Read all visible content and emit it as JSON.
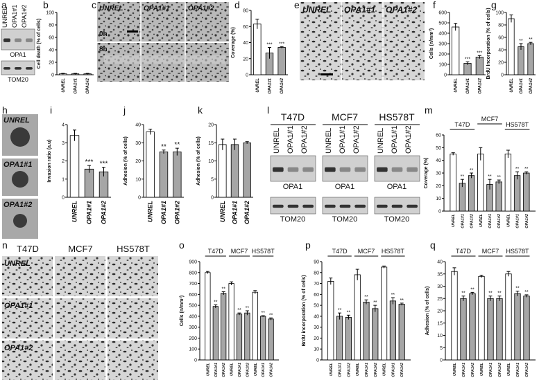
{
  "panel_labels": [
    "a",
    "b",
    "c",
    "d",
    "e",
    "f",
    "g",
    "h",
    "i",
    "j",
    "k",
    "l",
    "m",
    "n",
    "o",
    "p",
    "q"
  ],
  "images": {
    "a": {
      "lanes": [
        "UNREL",
        "OPA1#1",
        "OPA1#2"
      ],
      "bands": [
        "OPA1",
        "TOM20"
      ]
    },
    "c": {
      "columns": [
        "UNREL",
        "OPA1#1",
        "OPA1#2"
      ],
      "rows": [
        "0h",
        "8h"
      ]
    },
    "e": {
      "columns": [
        "UNREL",
        "OPA1#1",
        "OPA1#2"
      ]
    },
    "h": {
      "rows": [
        "UNREL",
        "OPA1#1",
        "OPA1#2"
      ]
    },
    "l": {
      "lines": [
        "T47D",
        "MCF7",
        "HS578T"
      ],
      "lanes": [
        "UNREL",
        "OPA1#1",
        "OPA1#2"
      ],
      "bands": [
        "OPA1",
        "TOM20"
      ]
    },
    "n": {
      "columns": [
        "T47D",
        "MCF7",
        "HS578T"
      ],
      "rows": [
        "UNREL",
        "OPA1#1",
        "OPA1#2"
      ]
    }
  },
  "chart_data": [
    {
      "type": "bar",
      "ylabel": "Cell death (% of cells)",
      "categories": [
        "UNREL",
        "OPA1#1",
        "OPA1#2"
      ],
      "values": [
        1.5,
        1.5,
        1.5
      ],
      "errors": [
        0.8,
        0.8,
        0.8
      ],
      "annotations": [
        null,
        null,
        null
      ],
      "colors": [
        "#ffffff",
        "#a6a6a6",
        "#a6a6a6"
      ],
      "ylim": [
        0,
        100
      ],
      "yticks": [
        0,
        20,
        40,
        60,
        80,
        100
      ]
    },
    {
      "type": "bar",
      "ylabel": "Coverage (%)",
      "categories": [
        "UNREL",
        "OPA1#1",
        "OPA1#2"
      ],
      "values": [
        63,
        27,
        34
      ],
      "errors": [
        6,
        7,
        1
      ],
      "annotations": [
        null,
        "***",
        "***"
      ],
      "colors": [
        "#ffffff",
        "#a6a6a6",
        "#a6a6a6"
      ],
      "ylim": [
        0,
        80
      ],
      "yticks": [
        0,
        20,
        40,
        60,
        80
      ]
    },
    {
      "type": "bar",
      "ylabel": "Cells (n/mm²)",
      "categories": [
        "UNREL",
        "OPA1#1",
        "OPA1#2"
      ],
      "values": [
        460,
        110,
        170
      ],
      "errors": [
        35,
        15,
        15
      ],
      "annotations": [
        null,
        "***",
        "***"
      ],
      "colors": [
        "#ffffff",
        "#a6a6a6",
        "#a6a6a6"
      ],
      "ylim": [
        0,
        600
      ],
      "yticks": [
        0,
        100,
        200,
        300,
        400,
        500,
        600
      ]
    },
    {
      "type": "bar",
      "ylabel": "BrdU Incorporation (% of cells)",
      "categories": [
        "UNREL",
        "OPA1#1",
        "OPA1#2"
      ],
      "values": [
        90,
        45,
        50
      ],
      "errors": [
        6,
        5,
        2
      ],
      "annotations": [
        null,
        "**",
        "**"
      ],
      "colors": [
        "#ffffff",
        "#a6a6a6",
        "#a6a6a6"
      ],
      "ylim": [
        0,
        100
      ],
      "yticks": [
        0,
        20,
        40,
        60,
        80,
        100
      ]
    },
    {
      "type": "bar",
      "ylabel": "Invasion ratio (a.u)",
      "categories": [
        "UNREL",
        "OPA1#1",
        "OPA1#2"
      ],
      "values": [
        3.4,
        1.55,
        1.4
      ],
      "errors": [
        0.3,
        0.2,
        0.25
      ],
      "annotations": [
        null,
        "***",
        "***"
      ],
      "colors": [
        "#ffffff",
        "#a6a6a6",
        "#a6a6a6"
      ],
      "ylim": [
        0,
        4
      ],
      "yticks": [
        0,
        1,
        2,
        3,
        4
      ]
    },
    {
      "type": "bar",
      "ylabel": "Adhesion (% of cells)",
      "categories": [
        "UNREL",
        "OPA1#1",
        "OPA1#2"
      ],
      "values": [
        36,
        25,
        25
      ],
      "errors": [
        1.5,
        1,
        2
      ],
      "annotations": [
        null,
        "**",
        "**"
      ],
      "colors": [
        "#ffffff",
        "#a6a6a6",
        "#a6a6a6"
      ],
      "ylim": [
        0,
        40
      ],
      "yticks": [
        0,
        10,
        20,
        30,
        40
      ]
    },
    {
      "type": "bar",
      "ylabel": "Adhesion (% of cells)",
      "categories": [
        "UNREL",
        "OPA1#1",
        "OPA1#2"
      ],
      "values": [
        14.5,
        14.5,
        15
      ],
      "errors": [
        1.5,
        1.5,
        0.3
      ],
      "annotations": [
        null,
        null,
        null
      ],
      "colors": [
        "#ffffff",
        "#a6a6a6",
        "#a6a6a6"
      ],
      "ylim": [
        0,
        20
      ],
      "yticks": [
        0,
        5,
        10,
        15,
        20
      ]
    },
    {
      "type": "grouped_bar",
      "ylabel": "Coverage (%)",
      "categories": [
        "UNREL",
        "OPA1#1",
        "OPA1#2"
      ],
      "colors": [
        "#ffffff",
        "#a6a6a6",
        "#a6a6a6"
      ],
      "ylim": [
        0,
        60
      ],
      "yticks": [
        0,
        10,
        20,
        30,
        40,
        50,
        60
      ],
      "groups": [
        {
          "name": "T47D",
          "values": [
            45,
            22,
            28
          ],
          "errors": [
            1,
            3,
            2
          ],
          "annotations": [
            null,
            "**",
            "**"
          ]
        },
        {
          "name": "MCF7",
          "values": [
            45,
            21,
            23
          ],
          "errors": [
            5,
            4,
            1.5
          ],
          "annotations": [
            null,
            "**",
            "**"
          ]
        },
        {
          "name": "HS578T",
          "values": [
            45,
            28,
            30
          ],
          "errors": [
            3,
            3,
            1
          ],
          "annotations": [
            null,
            "**",
            "**"
          ]
        }
      ]
    },
    {
      "type": "grouped_bar",
      "ylabel": "Cells (n/mm²)",
      "categories": [
        "UNREL",
        "OPA1#1",
        "OPA1#2"
      ],
      "colors": [
        "#ffffff",
        "#a6a6a6",
        "#a6a6a6"
      ],
      "ylim": [
        0,
        900
      ],
      "yticks": [
        0,
        100,
        200,
        300,
        400,
        500,
        600,
        700,
        800,
        900
      ],
      "groups": [
        {
          "name": "T47D",
          "values": [
            800,
            490,
            610
          ],
          "errors": [
            10,
            15,
            15
          ],
          "annotations": [
            null,
            "**",
            "**"
          ]
        },
        {
          "name": "MCF7",
          "values": [
            700,
            420,
            430
          ],
          "errors": [
            15,
            10,
            20
          ],
          "annotations": [
            null,
            "**",
            "**"
          ]
        },
        {
          "name": "HS578T",
          "values": [
            620,
            400,
            375
          ],
          "errors": [
            15,
            5,
            10
          ],
          "annotations": [
            null,
            "**",
            "**"
          ]
        }
      ]
    },
    {
      "type": "grouped_bar",
      "ylabel": "BrdU incorporation (% of cells)",
      "categories": [
        "UNREL",
        "OPA1#1",
        "OPA1#2"
      ],
      "colors": [
        "#ffffff",
        "#a6a6a6",
        "#a6a6a6"
      ],
      "ylim": [
        0,
        90
      ],
      "yticks": [
        0,
        10,
        20,
        30,
        40,
        50,
        60,
        70,
        80,
        90
      ],
      "groups": [
        {
          "name": "T47D",
          "values": [
            72,
            40,
            39
          ],
          "errors": [
            3,
            3,
            2
          ],
          "annotations": [
            null,
            "**",
            "**"
          ]
        },
        {
          "name": "MCF7",
          "values": [
            78,
            53,
            47
          ],
          "errors": [
            5,
            2,
            3
          ],
          "annotations": [
            null,
            "**",
            "**"
          ]
        },
        {
          "name": "HS578T",
          "values": [
            85,
            54,
            51
          ],
          "errors": [
            1,
            3,
            1
          ],
          "annotations": [
            null,
            "**",
            "**"
          ]
        }
      ]
    },
    {
      "type": "grouped_bar",
      "ylabel": "Adhesion (% of cells)",
      "categories": [
        "UNREL",
        "OPA1#1",
        "OPA1#2"
      ],
      "colors": [
        "#ffffff",
        "#a6a6a6",
        "#a6a6a6"
      ],
      "ylim": [
        0,
        40
      ],
      "yticks": [
        0,
        5,
        10,
        15,
        20,
        25,
        30,
        35,
        40
      ],
      "groups": [
        {
          "name": "T47D",
          "values": [
            36,
            25,
            27
          ],
          "errors": [
            1.5,
            1,
            0.5
          ],
          "annotations": [
            null,
            "**",
            "**"
          ]
        },
        {
          "name": "MCF7",
          "values": [
            34,
            25,
            25
          ],
          "errors": [
            0.5,
            1,
            1
          ],
          "annotations": [
            null,
            "**",
            "**"
          ]
        },
        {
          "name": "HS578T",
          "values": [
            35,
            27,
            26
          ],
          "errors": [
            1,
            1,
            0.5
          ],
          "annotations": [
            null,
            "**",
            "**"
          ]
        }
      ]
    }
  ]
}
